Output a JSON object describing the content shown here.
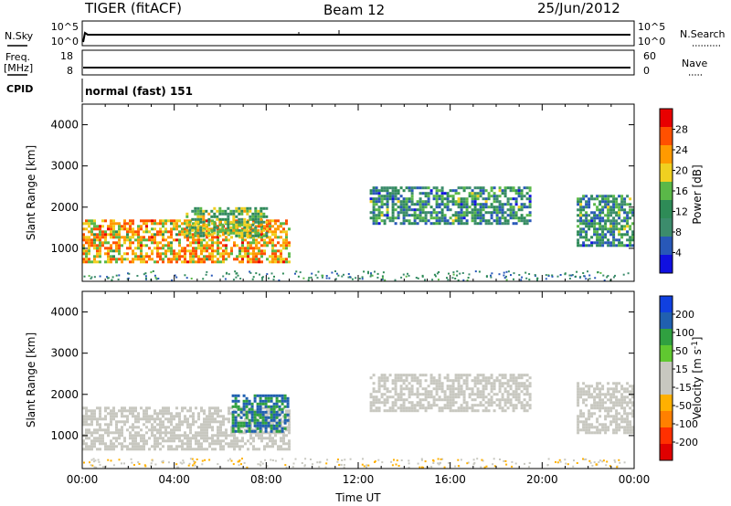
{
  "header": {
    "title": "TIGER (fitACF)",
    "beam": "Beam 12",
    "date": "25/Jun/2012"
  },
  "noise_panel": {
    "left_label": "N.Sky",
    "right_label": "N.Search",
    "left_ticks": [
      "10^5",
      "10^0"
    ],
    "right_ticks": [
      "10^5",
      "10^0"
    ]
  },
  "freq_panel": {
    "left_label_1": "Freq.",
    "left_label_2": "[MHz]",
    "right_label": "Nave",
    "left_ticks": [
      "18",
      "8"
    ],
    "right_ticks": [
      "60",
      "0"
    ]
  },
  "cpid": {
    "label": "CPID",
    "value": "normal (fast) 151"
  },
  "colors": {
    "power_scale": [
      "#1010e0",
      "#2858b8",
      "#3c8c6c",
      "#2e8b57",
      "#5ab848",
      "#f0d020",
      "#ff9a00",
      "#ff5000",
      "#e80000"
    ],
    "velocity_scale": [
      "#1040e0",
      "#2060b0",
      "#30a040",
      "#60c830",
      "#c8c8c0",
      "#c8c8c0",
      "#ffb000",
      "#ff8000",
      "#ff3000",
      "#e00000"
    ]
  },
  "chart_data": [
    {
      "type": "heatmap",
      "title": "",
      "xlabel": "Time UT",
      "ylabel": "Slant Range [km]",
      "xlim": [
        0,
        24
      ],
      "ylim": [
        200,
        4500
      ],
      "x_tick_labels": [
        "00:00",
        "04:00",
        "08:00",
        "12:00",
        "16:00",
        "20:00",
        "00:00"
      ],
      "y_ticks": [
        "1000",
        "2000",
        "3000",
        "4000"
      ],
      "colorbar_label": "Power [dB]",
      "colorbar_ticks": [
        "4",
        "8",
        "12",
        "16",
        "20",
        "24",
        "28"
      ],
      "colorbar_range": [
        0,
        30
      ],
      "echo_regions": [
        {
          "time_start": 0.0,
          "time_end": 9.0,
          "range_min": 700,
          "range_max": 1700,
          "value": 20
        },
        {
          "time_start": 4.5,
          "time_end": 8.0,
          "range_min": 1300,
          "range_max": 2000,
          "value": 14
        },
        {
          "time_start": 12.5,
          "time_end": 19.5,
          "range_min": 1600,
          "range_max": 2500,
          "value": 10
        },
        {
          "time_start": 21.5,
          "time_end": 24.0,
          "range_min": 1100,
          "range_max": 2300,
          "value": 10
        }
      ]
    },
    {
      "type": "heatmap",
      "title": "",
      "xlabel": "Time UT",
      "ylabel": "Slant Range [km]",
      "xlim": [
        0,
        24
      ],
      "ylim": [
        200,
        4500
      ],
      "x_tick_labels": [
        "00:00",
        "04:00",
        "08:00",
        "12:00",
        "16:00",
        "20:00",
        "00:00"
      ],
      "y_ticks": [
        "1000",
        "2000",
        "3000",
        "4000"
      ],
      "colorbar_label": "Velocity [m s",
      "colorbar_unit_sup": "-1",
      "colorbar_ticks": [
        "200",
        "100",
        "50",
        "15",
        "-15",
        "-50",
        "-100",
        "-200"
      ],
      "colorbar_range": [
        -250,
        250
      ],
      "echo_regions": [
        {
          "time_start": 0.0,
          "time_end": 9.0,
          "range_min": 700,
          "range_max": 1700,
          "value": 0
        },
        {
          "time_start": 6.5,
          "time_end": 9.0,
          "range_min": 1100,
          "range_max": 2000,
          "value": 150
        },
        {
          "time_start": 12.5,
          "time_end": 19.5,
          "range_min": 1600,
          "range_max": 2500,
          "value": 0
        },
        {
          "time_start": 21.5,
          "time_end": 24.0,
          "range_min": 1100,
          "range_max": 2300,
          "value": 0
        }
      ]
    }
  ]
}
